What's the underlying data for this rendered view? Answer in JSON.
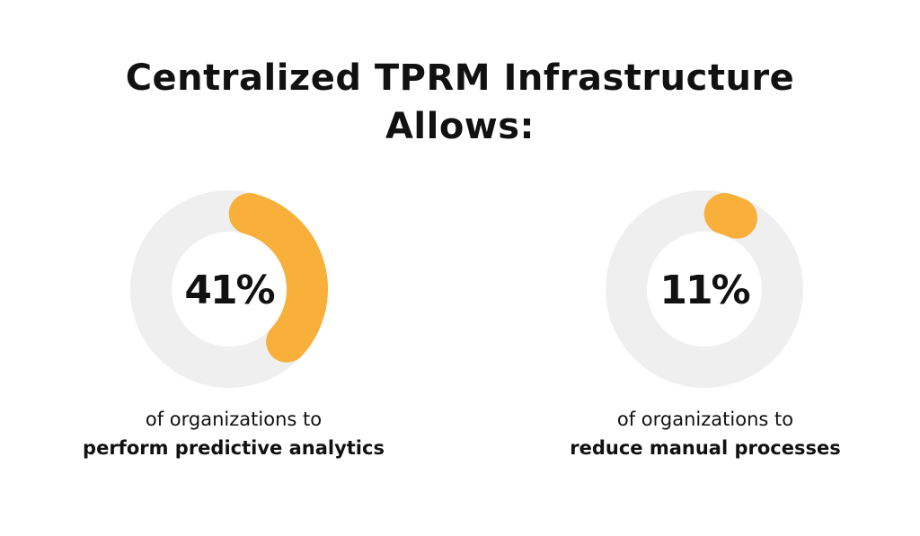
{
  "title": {
    "line1": "Centralized TPRM Infrastructure",
    "line2": "Allows:"
  },
  "colors": {
    "track": "#efefef",
    "accent": "#f8b03b",
    "text": "#111111"
  },
  "chart_data": [
    {
      "type": "pie",
      "variant": "donut",
      "label": "41%",
      "value": 41,
      "max": 100,
      "caption_line1": "of organizations to",
      "caption_line2": "perform predictive analytics"
    },
    {
      "type": "pie",
      "variant": "donut",
      "label": "11%",
      "value": 11,
      "max": 100,
      "caption_line1": "of organizations to",
      "caption_line2": "reduce manual processes"
    }
  ]
}
